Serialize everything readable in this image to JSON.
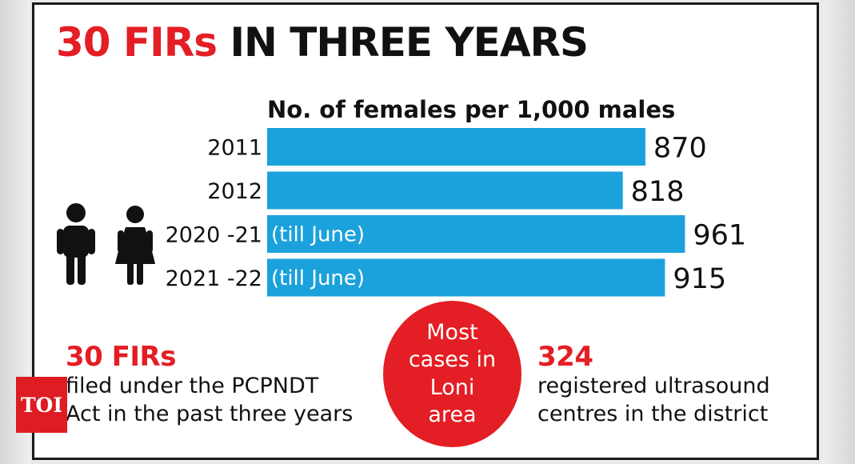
{
  "header": {
    "title_highlight": "30 FIRs",
    "title_rest": "IN THREE YEARS"
  },
  "chart_data": {
    "type": "bar",
    "orientation": "horizontal",
    "title": "No. of females per 1,000 males",
    "categories": [
      "2011",
      "2012",
      "2020 -21",
      "2021 -22"
    ],
    "bar_notes": [
      "",
      "",
      "(till June)",
      "(till June)"
    ],
    "values": [
      870,
      818,
      961,
      915
    ],
    "bar_color": "#1ba1dc",
    "value_labels": true,
    "grid": false,
    "legend": "none"
  },
  "stats": {
    "firs": {
      "value": "30 FIRs",
      "line1": "filed under the PCPNDT",
      "line2": "Act in the past three years"
    },
    "bubble": {
      "line1": "Most",
      "line2": "cases in",
      "line3": "Loni",
      "line4": "area",
      "color": "#e31e24"
    },
    "centres": {
      "value": "324",
      "line1": "registered ultrasound",
      "line2": "centres in the district"
    }
  },
  "branding": {
    "logo_text": "TOI",
    "logo_color": "#dd1c24"
  },
  "icons": [
    "male-figure-icon",
    "female-figure-icon"
  ]
}
